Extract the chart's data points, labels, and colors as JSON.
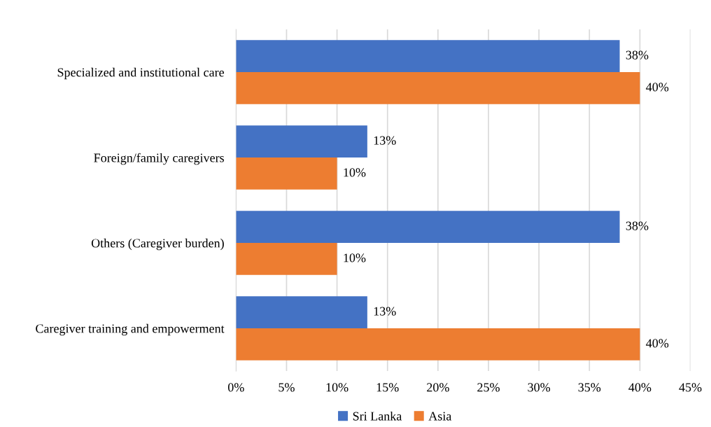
{
  "chart_data": {
    "type": "bar",
    "orientation": "horizontal",
    "categories": [
      "Specialized and institutional care",
      "Foreign/family caregivers",
      "Others (Caregiver burden)",
      "Caregiver training and empowerment"
    ],
    "series": [
      {
        "name": "Sri Lanka",
        "color": "#4472c4",
        "values": [
          38,
          13,
          38,
          13
        ],
        "value_labels": [
          "38%",
          "13%",
          "38%",
          "13%"
        ]
      },
      {
        "name": "Asia",
        "color": "#ed7d31",
        "values": [
          40,
          10,
          10,
          40
        ],
        "value_labels": [
          "40%",
          "10%",
          "10%",
          "40%"
        ]
      }
    ],
    "xlim": [
      0,
      45
    ],
    "xticks": [
      {
        "value": 0,
        "label": "0%"
      },
      {
        "value": 5,
        "label": "5%"
      },
      {
        "value": 10,
        "label": "10%"
      },
      {
        "value": 15,
        "label": "15%"
      },
      {
        "value": 20,
        "label": "20%"
      },
      {
        "value": 25,
        "label": "25%"
      },
      {
        "value": 30,
        "label": "30%"
      },
      {
        "value": 35,
        "label": "35%"
      },
      {
        "value": 40,
        "label": "40%"
      },
      {
        "value": 45,
        "label": "45%"
      }
    ],
    "grid": "x",
    "legend": "bottom"
  }
}
